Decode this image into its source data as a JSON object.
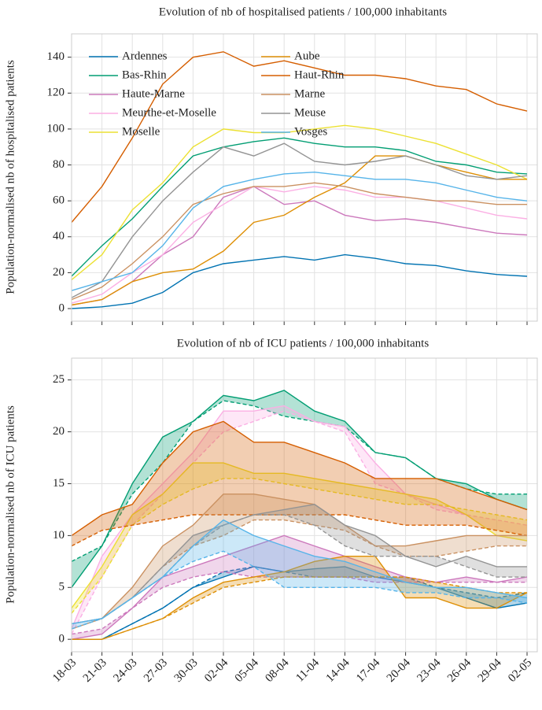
{
  "chart_data": [
    {
      "type": "line",
      "title": "Evolution of nb of hospitalised patients / 100,000 inhabitants",
      "ylabel": "Population-normalised nb of hospitalised patients",
      "ylim": [
        -7,
        153
      ],
      "yticks": [
        0,
        20,
        40,
        60,
        80,
        100,
        120,
        140
      ],
      "grid": true,
      "legend": "upper left",
      "series": [
        {
          "name": "Ardennes",
          "color": "#0173b2",
          "values": [
            0,
            1,
            3,
            9,
            20,
            25,
            27,
            29,
            27,
            30,
            28,
            25,
            24,
            21,
            19,
            18
          ]
        },
        {
          "name": "Bas-Rhin",
          "color": "#029e73",
          "values": [
            18,
            35,
            50,
            68,
            85,
            90,
            93,
            95,
            92,
            90,
            90,
            88,
            82,
            80,
            76,
            75
          ]
        },
        {
          "name": "Haute-Marne",
          "color": "#cc78bc",
          "values": [
            2,
            5,
            15,
            30,
            40,
            62,
            68,
            58,
            60,
            52,
            49,
            50,
            48,
            45,
            42,
            41
          ]
        },
        {
          "name": "Meurthe-et-Moselle",
          "color": "#fbafe4",
          "values": [
            3,
            8,
            20,
            30,
            48,
            58,
            68,
            65,
            68,
            66,
            62,
            62,
            60,
            56,
            52,
            50
          ]
        },
        {
          "name": "Moselle",
          "color": "#ece133",
          "values": [
            16,
            30,
            55,
            70,
            90,
            100,
            98,
            98,
            100,
            102,
            100,
            96,
            92,
            86,
            80,
            72
          ]
        },
        {
          "name": "Aube",
          "color": "#de8f05",
          "values": [
            2,
            5,
            15,
            20,
            22,
            32,
            48,
            52,
            62,
            70,
            85,
            85,
            80,
            76,
            72,
            72
          ]
        },
        {
          "name": "Haut-Rhin",
          "color": "#d55e00",
          "values": [
            48,
            68,
            95,
            125,
            140,
            143,
            135,
            138,
            134,
            130,
            130,
            128,
            124,
            122,
            114,
            110
          ]
        },
        {
          "name": "Marne",
          "color": "#ca9161",
          "values": [
            5,
            12,
            25,
            40,
            58,
            64,
            68,
            68,
            70,
            68,
            64,
            62,
            60,
            60,
            58,
            58
          ]
        },
        {
          "name": "Meuse",
          "color": "#949494",
          "values": [
            6,
            15,
            40,
            60,
            76,
            90,
            85,
            92,
            82,
            80,
            82,
            85,
            80,
            74,
            72,
            74
          ]
        },
        {
          "name": "Vosges",
          "color": "#56b4e9",
          "values": [
            10,
            15,
            20,
            35,
            56,
            68,
            72,
            75,
            76,
            74,
            72,
            72,
            70,
            66,
            62,
            60
          ]
        }
      ]
    },
    {
      "type": "band",
      "title": "Evolution of nb of ICU patients / 100,000 inhabitants",
      "ylabel": "Population-normalised nb of ICU  patients",
      "x": [
        "18-03",
        "21-03",
        "24-03",
        "27-03",
        "30-03",
        "02-04",
        "05-04",
        "08-04",
        "11-04",
        "14-04",
        "17-04",
        "20-04",
        "23-04",
        "26-04",
        "29-04",
        "02-05"
      ],
      "ylim": [
        -1.2,
        27.1
      ],
      "yticks": [
        0,
        5,
        10,
        15,
        20,
        25
      ],
      "grid": true,
      "series": [
        {
          "color": "#0173b2",
          "values": [
            0,
            0,
            1.5,
            3,
            5,
            6,
            7,
            6.5,
            6.8,
            7,
            6,
            5.5,
            5,
            4,
            3,
            3.5
          ],
          "values_dashed": [
            0,
            0,
            1.5,
            3,
            5,
            6.5,
            7,
            6.5,
            6,
            6,
            6,
            6,
            5,
            4.5,
            4,
            4.5
          ]
        },
        {
          "color": "#029e73",
          "values": [
            5,
            9,
            15,
            19.5,
            21,
            23.5,
            23,
            24,
            22,
            21,
            18,
            17.5,
            15.5,
            15,
            13.5,
            12.5
          ],
          "values_dashed": [
            7.5,
            9,
            14,
            17,
            21,
            23,
            22.5,
            21.5,
            21,
            20.5,
            18,
            17.5,
            15.5,
            14.5,
            14,
            14
          ]
        },
        {
          "color": "#cc78bc",
          "values": [
            0,
            0.5,
            3,
            6,
            7,
            8,
            9,
            10,
            9,
            8,
            7,
            6,
            5.5,
            6,
            5.5,
            6
          ],
          "values_dashed": [
            0.5,
            1,
            3,
            5,
            6,
            6.5,
            6,
            6,
            6,
            6,
            5.5,
            5.5,
            5.5,
            5.5,
            5.5,
            5.5
          ]
        },
        {
          "color": "#fbafe4",
          "values": [
            1,
            8,
            12,
            15,
            18,
            22,
            22,
            22.5,
            21,
            20.5,
            17,
            14,
            13,
            12,
            10,
            10
          ],
          "values_dashed": [
            0.5,
            6,
            11,
            14,
            17,
            20,
            21,
            22,
            21,
            20,
            15,
            14,
            12.5,
            12,
            11.5,
            11
          ]
        },
        {
          "color": "#ece133",
          "values": [
            3,
            7,
            12,
            14,
            17,
            17,
            16,
            16,
            15.5,
            15,
            14.5,
            14,
            13.5,
            12,
            10,
            9.5
          ],
          "values_dashed": [
            2.5,
            6,
            11,
            13,
            14.5,
            15.5,
            15.5,
            15,
            14.5,
            14,
            13.5,
            13,
            13,
            12.5,
            12,
            11.5
          ]
        },
        {
          "color": "#de8f05",
          "values": [
            0,
            0,
            1,
            2,
            4,
            5.5,
            6,
            6.5,
            7.5,
            8,
            8,
            4,
            4,
            3,
            3,
            4.5
          ],
          "values_dashed": [
            0,
            0,
            1,
            2,
            3.5,
            5,
            5.5,
            6,
            6,
            6,
            6,
            6,
            5.5,
            5,
            4.5,
            4.5
          ]
        },
        {
          "color": "#d55e00",
          "values": [
            10,
            12,
            13,
            17,
            20,
            21,
            19,
            19,
            18,
            17,
            15.5,
            15.5,
            15.5,
            14.5,
            13.5,
            12.5
          ],
          "values_dashed": [
            9,
            10.5,
            11,
            11.5,
            12,
            12,
            12,
            12,
            12,
            12,
            11.5,
            11,
            11,
            11,
            10.5,
            10
          ]
        },
        {
          "color": "#ca9161",
          "values": [
            1,
            2,
            5,
            9,
            11,
            14,
            14,
            13.5,
            13,
            11,
            9,
            9,
            9.5,
            10,
            10,
            10
          ],
          "values_dashed": [
            1,
            2,
            4,
            7,
            9,
            10,
            11.5,
            11.5,
            11,
            10.5,
            9,
            8,
            8,
            8.5,
            9,
            9
          ]
        },
        {
          "color": "#949494",
          "values": [
            1.5,
            2,
            4,
            7,
            10,
            11,
            12,
            12.5,
            13,
            11,
            10,
            8,
            7,
            8,
            7,
            7
          ],
          "values_dashed": [
            1.5,
            2,
            4,
            6,
            9,
            11,
            12,
            12,
            11,
            9,
            8,
            8,
            8,
            7,
            6,
            6
          ]
        },
        {
          "color": "#56b4e9",
          "values": [
            1.5,
            2,
            4,
            6,
            9,
            11.5,
            10,
            9,
            8,
            7.5,
            6.5,
            5.5,
            5,
            5,
            4.5,
            4
          ],
          "values_dashed": [
            1,
            2,
            4,
            6,
            7.5,
            8.5,
            7,
            5,
            5,
            5,
            5,
            4.5,
            4.5,
            4,
            4,
            3.5
          ]
        }
      ]
    }
  ]
}
